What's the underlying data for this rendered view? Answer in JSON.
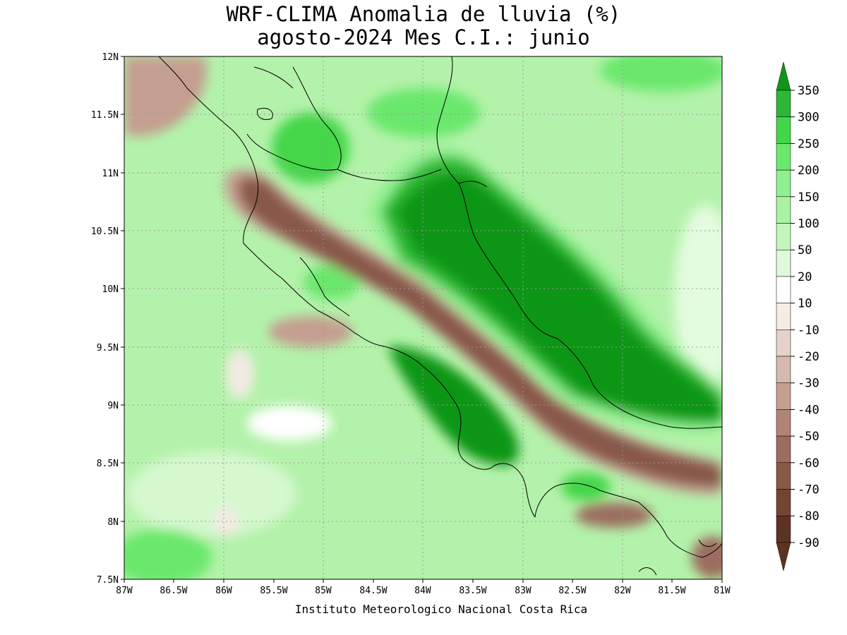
{
  "header": {
    "title_line1": "WRF-CLIMA Anomalia de lluvia (%)",
    "title_line2": "agosto-2024 Mes C.I.: junio"
  },
  "footer": {
    "credit": "Instituto Meteorologico Nacional Costa Rica"
  },
  "axes": {
    "lon_ticks": [
      "87W",
      "86.5W",
      "86W",
      "85.5W",
      "85W",
      "84.5W",
      "84W",
      "83.5W",
      "83W",
      "82.5W",
      "82W",
      "81.5W",
      "81W"
    ],
    "lat_ticks": [
      "12N",
      "11.5N",
      "11N",
      "10.5N",
      "10N",
      "9.5N",
      "9N",
      "8.5N",
      "8N",
      "7.5N"
    ],
    "lon_range": [
      -87,
      -81
    ],
    "lat_range": [
      7.5,
      12
    ],
    "grid": "dotted"
  },
  "colorbar": {
    "levels": [
      "350",
      "300",
      "250",
      "200",
      "150",
      "100",
      "50",
      "20",
      "10",
      "-10",
      "-20",
      "-30",
      "-40",
      "-50",
      "-60",
      "-70",
      "-80",
      "-90"
    ],
    "colors": [
      "#109618",
      "#2cb833",
      "#44d64a",
      "#6ae86c",
      "#8ff08f",
      "#a9f3a2",
      "#c4f6bc",
      "#dffadb",
      "#ffffff",
      "#f6ece2",
      "#e6d2c8",
      "#d6b8ac",
      "#c49e90",
      "#b08476",
      "#9c6d5e",
      "#885848",
      "#744434",
      "#5e3222"
    ]
  },
  "colors": {
    "strong_wet": "#109618",
    "wet": "#6ae86c",
    "mild_wet": "#b3f2aa",
    "neutral": "#ffffff",
    "dry": "#c49e90",
    "strong_dry": "#744434"
  }
}
